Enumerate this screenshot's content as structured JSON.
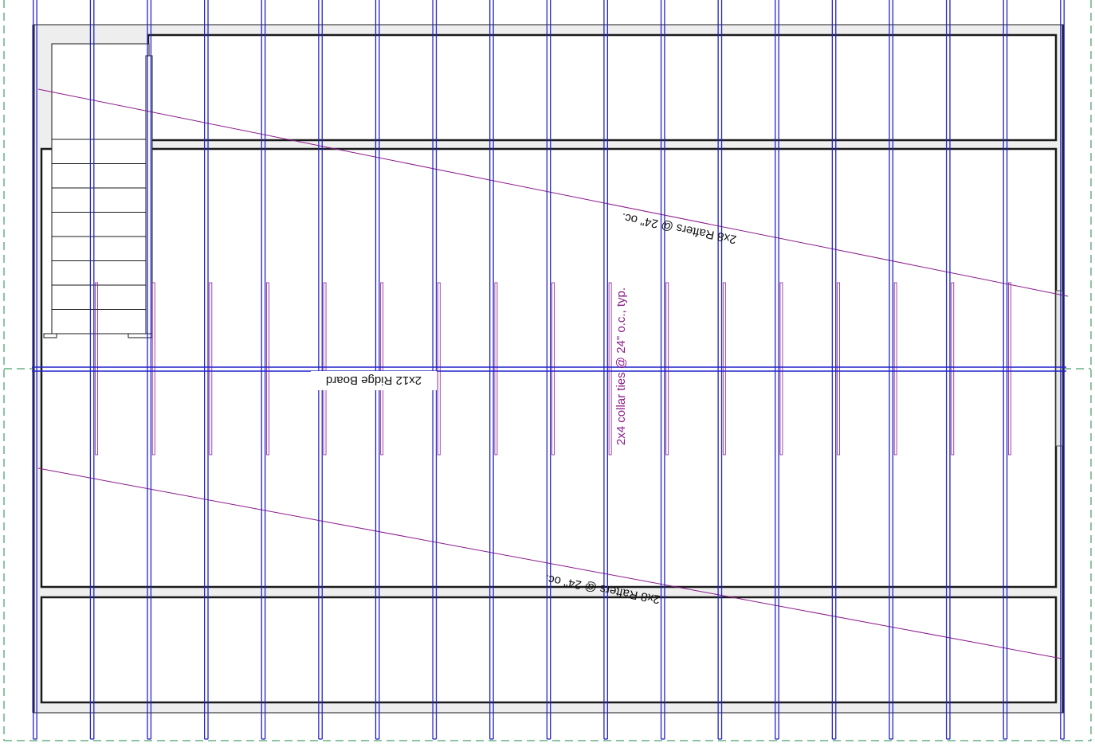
{
  "labels": {
    "rafters_upper": "2x8  Rafters @ 24\" oc.",
    "rafters_lower": "2x8  Rafters @ 24\" oc.",
    "ridge_board": "2x12 Ridge Board",
    "collar_ties": "2x4 collar ties @ 24\" o.c., typ."
  },
  "colors": {
    "rafter": "#2222cc",
    "annotation": "#8b1a8b",
    "wall": "#1a1a1a",
    "grid": "#1a8a4a",
    "fill": "#eeeeee"
  },
  "framing": {
    "rafter_count": 19,
    "collar_tie_count": 17,
    "stair_tread_count": 9
  }
}
